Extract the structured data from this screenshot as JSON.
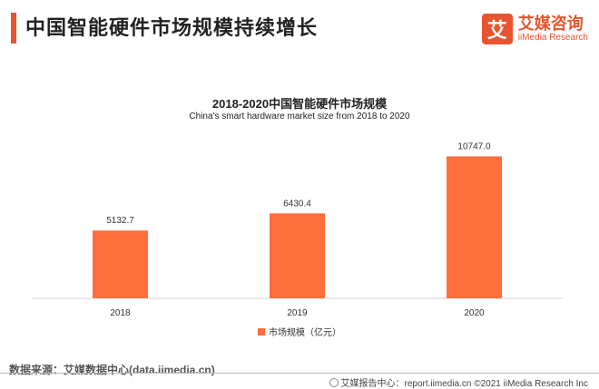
{
  "header": {
    "title": "中国智能硬件市场规模持续增长"
  },
  "logo": {
    "mark": "艾",
    "name_cn": "艾媒咨询",
    "name_en": "iiMedia Research"
  },
  "source_text": "数据来源：艾媒数据中心(data.iimedia.cn)",
  "footer": {
    "text": "艾媒报告中心：report.iimedia.cn ©2021  iiMedia Research  Inc"
  },
  "colors": {
    "accent": "#e8542f",
    "bar": "#ff6f3d"
  },
  "chart_data": {
    "type": "bar",
    "title": "2018-2020中国智能硬件市场规模",
    "subtitle": "China's smart hardware market size from 2018 to 2020",
    "categories": [
      "2018",
      "2019",
      "2020"
    ],
    "series": [
      {
        "name": "市场规模（亿元）",
        "values": [
          5132.7,
          6430.4,
          10747.0
        ],
        "labels": [
          "5132.7",
          "6430.4",
          "10747.0"
        ]
      }
    ],
    "ylim": [
      0,
      11600
    ],
    "grid": false,
    "legend_position": "bottom"
  }
}
